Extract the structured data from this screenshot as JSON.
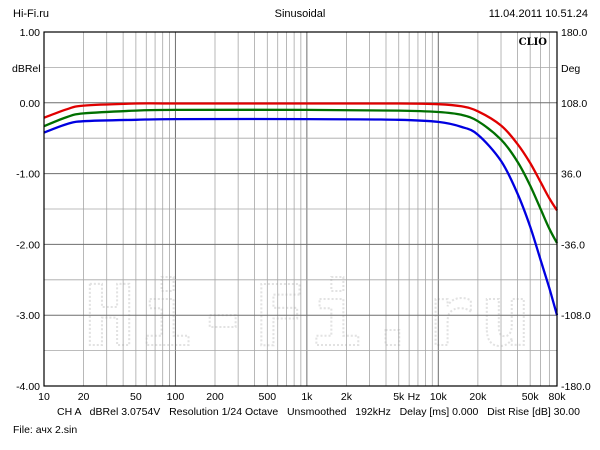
{
  "header": {
    "left": "Hi-Fi.ru",
    "center": "Sinusoidal",
    "right": "11.04.2011 10.51.24"
  },
  "footer": {
    "status": "CH A   dBRel 3.0754V   Resolution 1/24 Octave   Unsmoothed   192kHz   Delay [ms] 0.000   Dist Rise [dB] 30.00",
    "file": "File: ачх 2.sin"
  },
  "chart_data": {
    "type": "line",
    "brand": "CLIO",
    "watermark": "Hi-Fi.ru",
    "ylabel_left": "dBRel",
    "ylabel_right": "Deg",
    "xlabel_unit": "Hz",
    "x_scale": "log",
    "xlim": [
      10,
      80000
    ],
    "ylim": [
      -4.0,
      1.0
    ],
    "ylim_right": [
      -180.0,
      180.0
    ],
    "grid": true,
    "x_ticks": [
      {
        "value": 10,
        "label": "10"
      },
      {
        "value": 20,
        "label": "20"
      },
      {
        "value": 50,
        "label": "50"
      },
      {
        "value": 100,
        "label": "100"
      },
      {
        "value": 200,
        "label": "200"
      },
      {
        "value": 500,
        "label": "500"
      },
      {
        "value": 1000,
        "label": "1k"
      },
      {
        "value": 2000,
        "label": "2k"
      },
      {
        "value": 5000,
        "label": "5k"
      },
      {
        "value": 10000,
        "label": "10k"
      },
      {
        "value": 20000,
        "label": "20k"
      },
      {
        "value": 50000,
        "label": "50k"
      },
      {
        "value": 80000,
        "label": "80k"
      }
    ],
    "y_ticks_left": [
      "1.00",
      "0.00",
      "-1.00",
      "-2.00",
      "-3.00",
      "-4.00"
    ],
    "y_ticks_right": [
      "180.0",
      "108.0",
      "36.0",
      "-36.0",
      "-108.0",
      "-180.0"
    ],
    "series": [
      {
        "color": "#e00000",
        "x": [
          10,
          15,
          20,
          50,
          100,
          1000,
          5000,
          10000,
          15000,
          20000,
          30000,
          40000,
          50000,
          60000,
          70000,
          80000
        ],
        "y": [
          -0.21,
          -0.09,
          -0.04,
          -0.01,
          -0.01,
          -0.01,
          -0.01,
          -0.02,
          -0.05,
          -0.12,
          -0.32,
          -0.58,
          -0.85,
          -1.12,
          -1.35,
          -1.52
        ]
      },
      {
        "color": "#007000",
        "x": [
          10,
          15,
          20,
          50,
          100,
          1000,
          5000,
          10000,
          15000,
          20000,
          30000,
          40000,
          50000,
          60000,
          70000,
          80000
        ],
        "y": [
          -0.33,
          -0.2,
          -0.15,
          -0.11,
          -0.1,
          -0.1,
          -0.11,
          -0.13,
          -0.17,
          -0.26,
          -0.52,
          -0.83,
          -1.17,
          -1.5,
          -1.78,
          -1.98
        ]
      },
      {
        "color": "#0000e0",
        "x": [
          10,
          15,
          20,
          50,
          100,
          1000,
          5000,
          10000,
          15000,
          20000,
          30000,
          40000,
          50000,
          60000,
          70000,
          80000
        ],
        "y": [
          -0.42,
          -0.3,
          -0.26,
          -0.24,
          -0.23,
          -0.23,
          -0.24,
          -0.27,
          -0.34,
          -0.45,
          -0.82,
          -1.28,
          -1.75,
          -2.22,
          -2.62,
          -3.0
        ]
      }
    ]
  }
}
